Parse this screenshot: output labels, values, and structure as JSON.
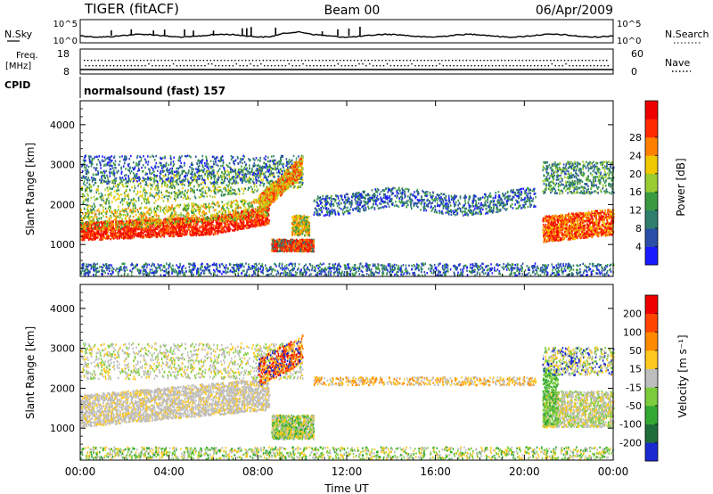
{
  "header": {
    "title": "TIGER  (fitACF)",
    "beam": "Beam 00",
    "date": "06/Apr/2009"
  },
  "top_panel": {
    "left_label": "N.Sky",
    "right_label": "N.Search",
    "left_ticks": [
      "10^5",
      "10^0"
    ],
    "right_ticks": [
      "10^5",
      "10^0"
    ],
    "freq_label_1": "Freq.",
    "freq_label_2": "[MHz]",
    "freq_ticks": [
      "18",
      "8"
    ],
    "nave_label": "Nave",
    "nave_ticks": [
      "60",
      "0"
    ],
    "cpid_label": "CPID",
    "cpid_value": "normalsound (fast) 157"
  },
  "chart_data": [
    {
      "type": "heatmap",
      "name": "power",
      "ylabel": "Slant Range [km]",
      "ylim": [
        200,
        4600
      ],
      "yticks": [
        "1000",
        "2000",
        "3000",
        "4000"
      ],
      "colorbar": {
        "label": "Power [dB]",
        "ticks": [
          "4",
          "8",
          "12",
          "16",
          "20",
          "24",
          "28"
        ],
        "colors": [
          "#1a1aff",
          "#2a4fa8",
          "#2f7e6e",
          "#3a9a40",
          "#9acd32",
          "#f0c800",
          "#ff8000",
          "#ff2a00",
          "#ee0000"
        ]
      }
    },
    {
      "type": "heatmap",
      "name": "velocity",
      "ylabel": "Slant Range [km]",
      "ylim": [
        200,
        4600
      ],
      "yticks": [
        "1000",
        "2000",
        "3000",
        "4000"
      ],
      "colorbar": {
        "label": "Velocity [m s⁻¹]",
        "ticks": [
          "200",
          "100",
          "50",
          "15",
          "-15",
          "-50",
          "-100",
          "-200"
        ],
        "colors": [
          "#1a2ad0",
          "#1f6e3a",
          "#33a833",
          "#7ccd3c",
          "#bebebe",
          "#ffc820",
          "#ff8a00",
          "#ff4400",
          "#ee0000"
        ]
      }
    }
  ],
  "x_axis": {
    "ticks": [
      "00:00",
      "04:00",
      "08:00",
      "12:00",
      "16:00",
      "20:00",
      "00:00"
    ],
    "label": "Time UT"
  }
}
